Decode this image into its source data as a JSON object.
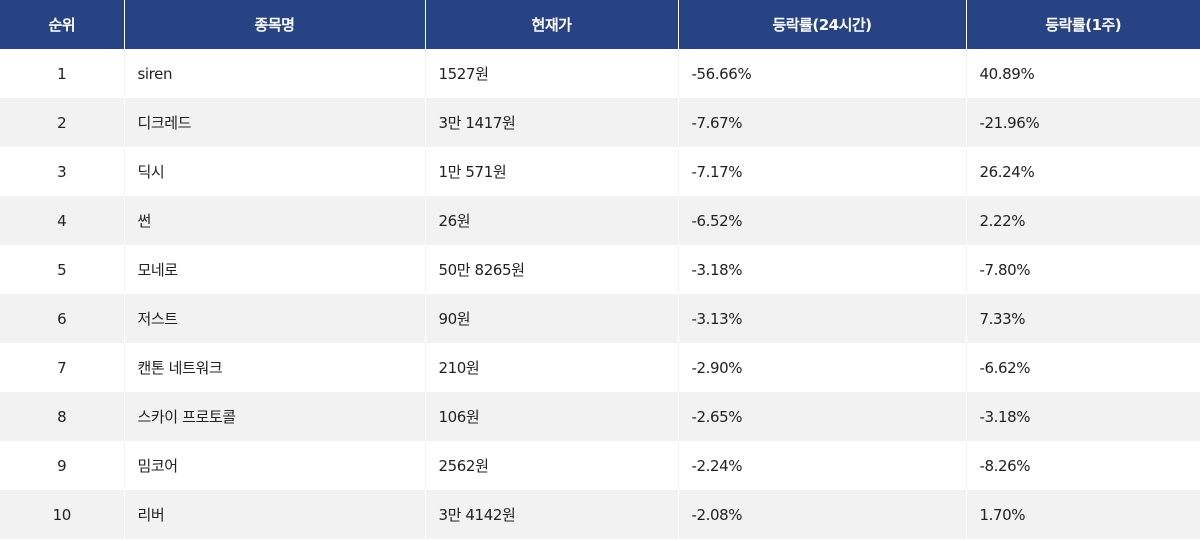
{
  "table": {
    "headers": {
      "rank": "순위",
      "name": "종목명",
      "price": "현재가",
      "change_24h": "등락률(24시간)",
      "change_1w": "등락률(1주)"
    },
    "rows": [
      {
        "rank": "1",
        "name": "siren",
        "price": "1527원",
        "change_24h": "-56.66%",
        "change_1w": "40.89%"
      },
      {
        "rank": "2",
        "name": "디크레드",
        "price": "3만 1417원",
        "change_24h": "-7.67%",
        "change_1w": "-21.96%"
      },
      {
        "rank": "3",
        "name": "딕시",
        "price": "1만 571원",
        "change_24h": "-7.17%",
        "change_1w": "26.24%"
      },
      {
        "rank": "4",
        "name": "썬",
        "price": "26원",
        "change_24h": "-6.52%",
        "change_1w": "2.22%"
      },
      {
        "rank": "5",
        "name": "모네로",
        "price": "50만 8265원",
        "change_24h": "-3.18%",
        "change_1w": "-7.80%"
      },
      {
        "rank": "6",
        "name": "저스트",
        "price": "90원",
        "change_24h": "-3.13%",
        "change_1w": "7.33%"
      },
      {
        "rank": "7",
        "name": "캔톤 네트워크",
        "price": "210원",
        "change_24h": "-2.90%",
        "change_1w": "-6.62%"
      },
      {
        "rank": "8",
        "name": "스카이 프로토콜",
        "price": "106원",
        "change_24h": "-2.65%",
        "change_1w": "-3.18%"
      },
      {
        "rank": "9",
        "name": "밈코어",
        "price": "2562원",
        "change_24h": "-2.24%",
        "change_1w": "-8.26%"
      },
      {
        "rank": "10",
        "name": "리버",
        "price": "3만 4142원",
        "change_24h": "-2.08%",
        "change_1w": "1.70%"
      }
    ]
  },
  "colors": {
    "header_bg": "#274384",
    "header_text": "#ffffff",
    "row_alt_bg": "#f2f2f2",
    "row_bg": "#ffffff",
    "text": "#222222"
  }
}
